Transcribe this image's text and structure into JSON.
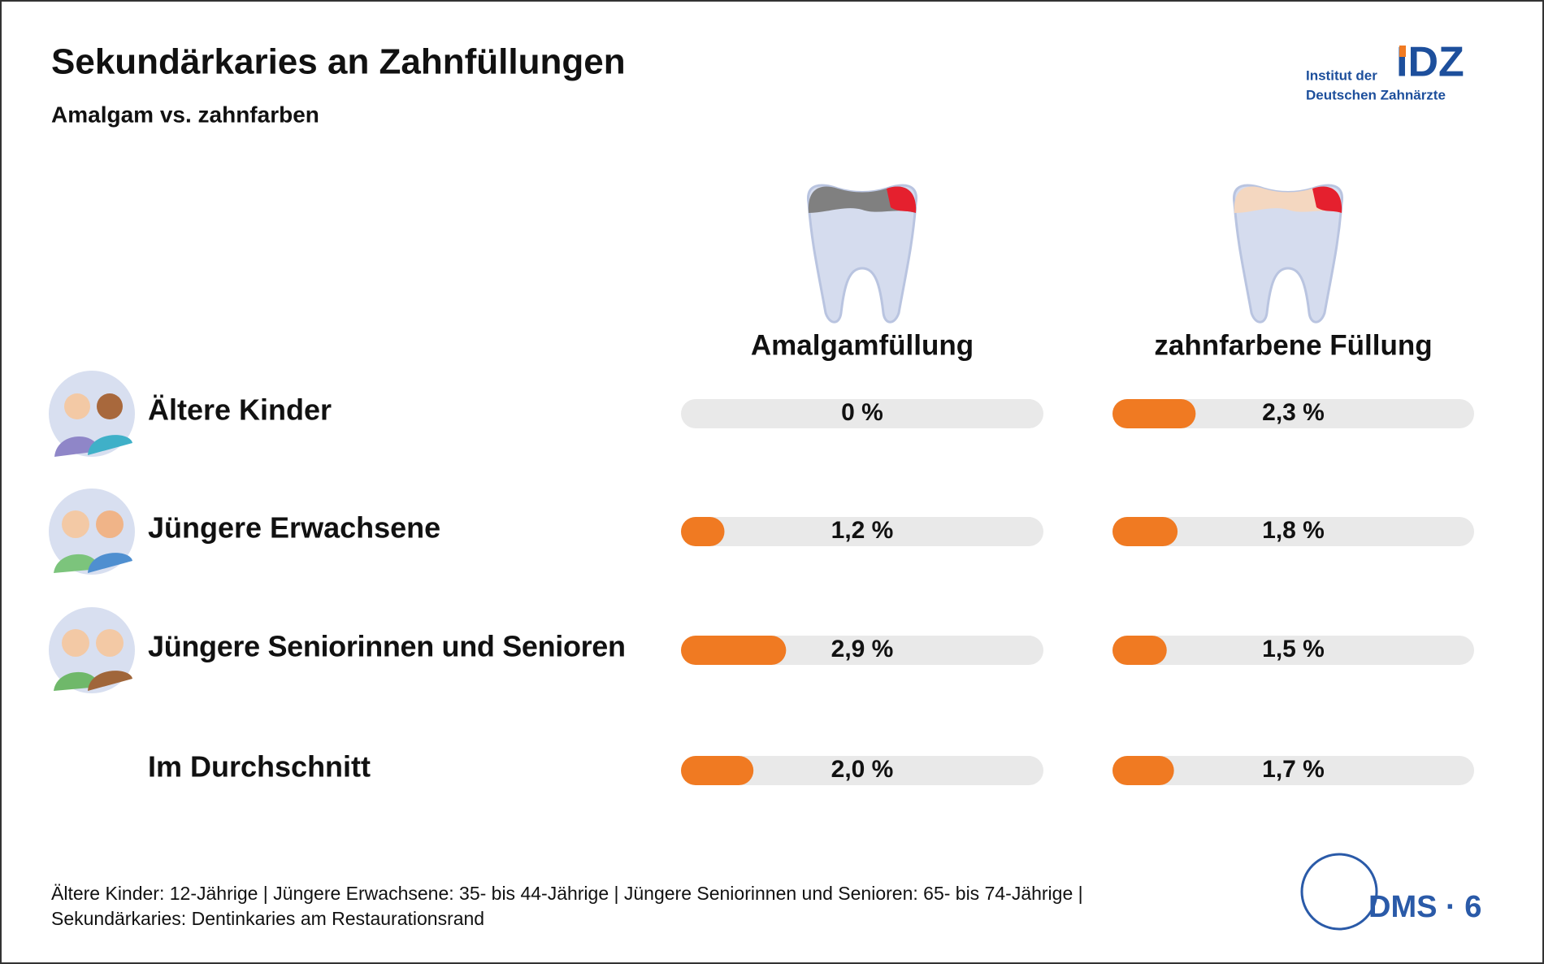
{
  "chart_data": {
    "type": "bar",
    "title": "Sekundärkaries an Zahnfüllungen",
    "subtitle": "Amalgam vs. zahnfarben",
    "categories": [
      "Ältere Kinder",
      "Jüngere Erwachsene",
      "Jüngere Seniorinnen und Senioren",
      "Im Durchschnitt"
    ],
    "xlim": [
      0,
      10
    ],
    "series": [
      {
        "name": "Amalgamfüllung",
        "color": "#f07a22",
        "values": [
          0,
          1.2,
          2.9,
          2.0
        ],
        "value_labels": [
          "0 %",
          "1,2 %",
          "2,9 %",
          "2,0 %"
        ]
      },
      {
        "name": "zahnfarbene Füllung",
        "color": "#f07a22",
        "values": [
          2.3,
          1.8,
          1.5,
          1.7
        ],
        "value_labels": [
          "2,3 %",
          "1,8 %",
          "1,5 %",
          "1,7 %"
        ]
      }
    ]
  },
  "logo": {
    "line1": "Institut der",
    "line2": "Deutschen Zahnärzte",
    "mark": "IDZ",
    "study": "DMS · 6"
  },
  "footnote": [
    "Ältere Kinder: 12-Jährige | Jüngere Erwachsene: 35- bis 44-Jährige | Jüngere Seniorinnen und Senioren: 65- bis 74-Jährige |",
    "Sekundärkaries: Dentinkaries am Restaurationsrand"
  ]
}
